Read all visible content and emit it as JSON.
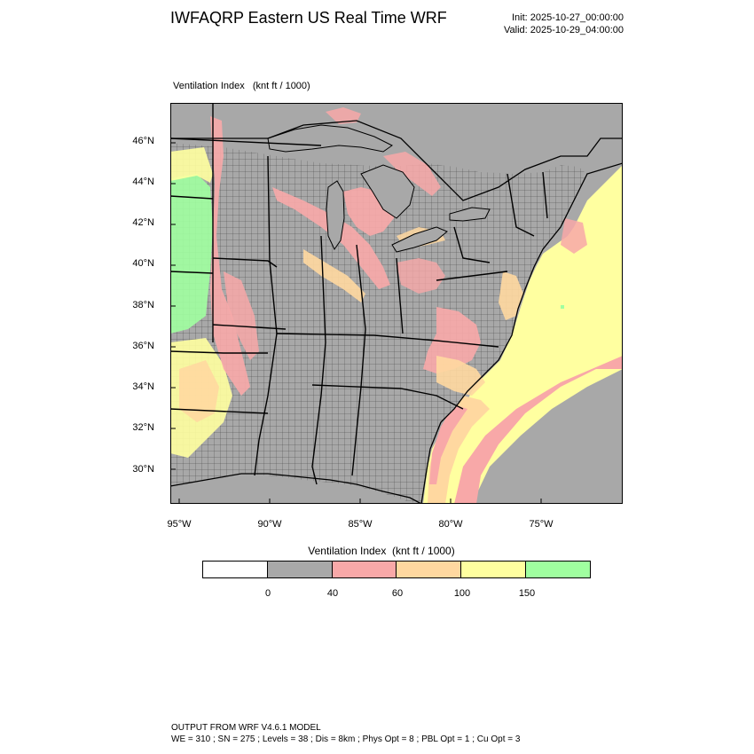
{
  "header": {
    "title": "IWFAQRP Eastern US Real Time WRF",
    "init": "Init: 2025-10-27_00:00:00",
    "valid": "Valid: 2025-10-29_04:00:00"
  },
  "map": {
    "variable_label": "Ventilation Index   (knt ft / 1000)",
    "lat_ticks": [
      "46°N",
      "44°N",
      "42°N",
      "40°N",
      "38°N",
      "36°N",
      "34°N",
      "32°N",
      "30°N"
    ],
    "lon_ticks": [
      "95°W",
      "90°W",
      "85°W",
      "80°W",
      "75°W"
    ],
    "colors": {
      "ocean": "#ffffa0",
      "land_base": "#a8a8a8",
      "ventilation_40_60": "#f8a8a8",
      "ventilation_60_100": "#ffd8a0",
      "ventilation_100_150": "#ffffa0",
      "ventilation_150_plus": "#a0ffa0",
      "outline": "#000000"
    }
  },
  "legend": {
    "title": "Ventilation Index  (knt ft / 1000)",
    "colors": [
      "#ffffff",
      "#a8a8a8",
      "#f8a8a8",
      "#ffd8a0",
      "#ffffa0",
      "#a0ffa0"
    ],
    "labels": [
      "0",
      "40",
      "60",
      "100",
      "150"
    ]
  },
  "footer": {
    "line1": "OUTPUT FROM WRF V4.6.1 MODEL",
    "line2": "WE = 310 ; SN = 275 ; Levels = 38 ; Dis = 8km ; Phys Opt = 8 ; PBL Opt = 1 ; Cu Opt = 3"
  }
}
